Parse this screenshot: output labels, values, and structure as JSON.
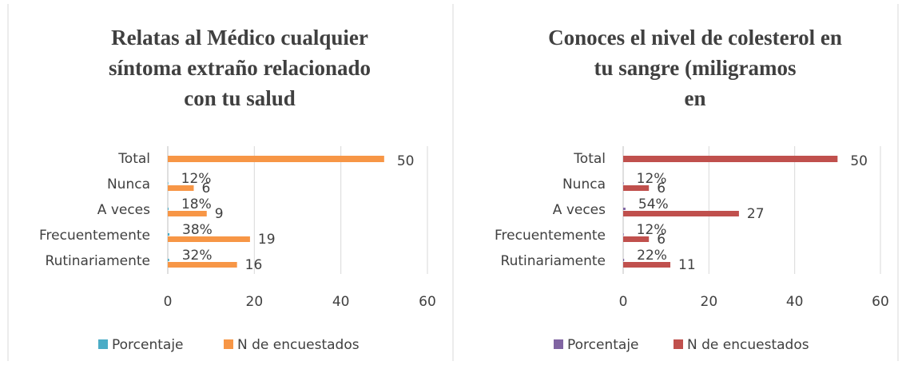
{
  "chart_data": [
    {
      "type": "bar",
      "orientation": "horizontal",
      "title": "Relatas al Médico cualquier síntoma extraño relacionado con tu salud",
      "categories": [
        "Total",
        "Nunca",
        "A veces",
        "Frecuentemente",
        "Rutinariamente"
      ],
      "series": [
        {
          "name": "Porcentaje",
          "color": "#4bacc6",
          "values": [
            null,
            0.12,
            0.18,
            0.38,
            0.32
          ],
          "value_labels": [
            null,
            "12%",
            "18%",
            "38%",
            "32%"
          ]
        },
        {
          "name": "N de encuestados",
          "color": "#f79646",
          "values": [
            50,
            6,
            9,
            19,
            16
          ]
        }
      ],
      "xlim": [
        0,
        60
      ],
      "xticks": [
        0,
        20,
        40,
        60
      ],
      "grid": true,
      "legend": "bottom"
    },
    {
      "type": "bar",
      "orientation": "horizontal",
      "title": "Conoces el nivel de colesterol en tu sangre (miligramos en sangre)",
      "categories": [
        "Total",
        "Nunca",
        "A veces",
        "Frecuentemente",
        "Rutinariamente"
      ],
      "series": [
        {
          "name": "Porcentaje",
          "color": "#8064a2",
          "values": [
            null,
            0.12,
            0.54,
            0.12,
            0.22
          ],
          "value_labels": [
            null,
            "12%",
            "54%",
            "12%",
            "22%"
          ]
        },
        {
          "name": "N de encuestados",
          "color": "#c0504d",
          "values": [
            50,
            6,
            27,
            6,
            11
          ]
        }
      ],
      "xlim": [
        0,
        60
      ],
      "xticks": [
        0,
        20,
        40,
        60
      ],
      "grid": true,
      "legend": "bottom"
    }
  ]
}
